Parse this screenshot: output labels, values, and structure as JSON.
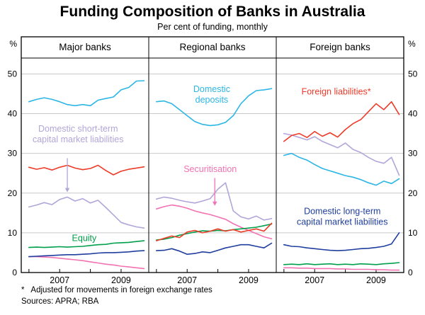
{
  "title": "Funding Composition of Banks in Australia",
  "subtitle": "Per cent of funding, monthly",
  "footnote": "*   Adjusted for movements in foreign exchange rates",
  "sources": "Sources: APRA; RBA",
  "colors": {
    "deposits": "#2cb6e6",
    "short_term": "#b2a6d9",
    "foreign": "#ee3b28",
    "equity": "#009f4c",
    "long_term": "#1f3e9e",
    "securitisation": "#f272b2",
    "grid": "#c9c9c9",
    "axis": "#000000"
  },
  "chart_data": {
    "type": "line",
    "unit": "%",
    "grid": true,
    "xlim": [
      2005.75,
      2009.9
    ],
    "ylim": [
      0,
      54
    ],
    "yticks": [
      0,
      10,
      20,
      30,
      40,
      50
    ],
    "xtick_positions": [
      2007,
      2009
    ],
    "xtick_labels": [
      "2007",
      "2009"
    ],
    "xtick_marks": [
      2006,
      2007,
      2008,
      2009
    ],
    "x_years": [
      2006.0,
      2006.25,
      2006.5,
      2006.75,
      2007.0,
      2007.25,
      2007.5,
      2007.75,
      2008.0,
      2008.25,
      2008.5,
      2008.75,
      2009.0,
      2009.25,
      2009.5,
      2009.75
    ],
    "panels": [
      {
        "title": "Major banks",
        "series": [
          {
            "name": "Domestic short-term capital market liabilities",
            "color_key": "short_term",
            "values": [
              16.5,
              17.0,
              17.6,
              17.1,
              18.4,
              19.0,
              18.0,
              18.6,
              17.5,
              18.2,
              16.4,
              14.5,
              12.6,
              12.0,
              11.5,
              11.2
            ]
          },
          {
            "name": "Securitisation",
            "color_key": "securitisation",
            "values": [
              4.0,
              4.0,
              3.9,
              3.8,
              3.6,
              3.4,
              3.2,
              3.0,
              2.7,
              2.4,
              2.1,
              1.9,
              1.6,
              1.4,
              1.2,
              1.0
            ]
          },
          {
            "name": "Equity",
            "color_key": "equity",
            "values": [
              6.3,
              6.4,
              6.3,
              6.4,
              6.5,
              6.4,
              6.5,
              6.6,
              6.8,
              7.0,
              7.1,
              7.4,
              7.5,
              7.6,
              7.8,
              8.0
            ]
          },
          {
            "name": "Domestic long-term capital market liabilities",
            "color_key": "long_term",
            "values": [
              4.0,
              4.1,
              4.2,
              4.3,
              4.4,
              4.5,
              4.5,
              4.6,
              4.7,
              4.9,
              5.0,
              5.0,
              5.1,
              5.2,
              5.4,
              5.5
            ]
          },
          {
            "name": "Foreign liabilities",
            "color_key": "foreign",
            "values": [
              26.5,
              26.0,
              26.4,
              25.8,
              26.5,
              27.0,
              26.3,
              25.9,
              26.2,
              27.0,
              25.7,
              24.6,
              25.5,
              26.0,
              26.3,
              26.6
            ]
          },
          {
            "name": "Domestic deposits",
            "color_key": "deposits",
            "values": [
              43.0,
              43.6,
              44.0,
              43.6,
              43.0,
              42.3,
              42.0,
              42.3,
              42.0,
              43.4,
              43.8,
              44.2,
              46.0,
              46.6,
              48.2,
              48.3
            ]
          }
        ]
      },
      {
        "title": "Regional banks",
        "series": [
          {
            "name": "Domestic short-term capital market liabilities",
            "color_key": "short_term",
            "values": [
              18.5,
              19.0,
              18.7,
              18.2,
              17.8,
              17.5,
              18.0,
              18.6,
              21.0,
              22.6,
              15.5,
              14.0,
              13.5,
              14.2,
              13.2,
              13.6
            ]
          },
          {
            "name": "Securitisation",
            "color_key": "securitisation",
            "values": [
              16.0,
              16.6,
              17.0,
              16.7,
              16.2,
              15.5,
              15.0,
              14.6,
              14.0,
              13.4,
              12.3,
              11.4,
              10.6,
              9.8,
              9.0,
              8.5
            ]
          },
          {
            "name": "Domestic long-term capital market liabilities",
            "color_key": "long_term",
            "values": [
              5.5,
              5.6,
              6.0,
              5.4,
              4.6,
              4.8,
              5.2,
              5.0,
              5.6,
              6.2,
              6.6,
              7.0,
              7.0,
              6.6,
              6.2,
              7.4
            ]
          },
          {
            "name": "Equity",
            "color_key": "equity",
            "values": [
              8.2,
              8.4,
              8.8,
              9.4,
              9.8,
              10.2,
              10.5,
              10.4,
              10.6,
              10.5,
              10.8,
              11.0,
              11.2,
              11.4,
              11.8,
              12.2
            ]
          },
          {
            "name": "Foreign liabilities",
            "color_key": "foreign",
            "values": [
              8.0,
              8.6,
              9.2,
              8.8,
              10.2,
              10.6,
              10.0,
              10.4,
              11.0,
              10.4,
              10.8,
              10.2,
              10.6,
              11.0,
              10.4,
              12.4
            ]
          },
          {
            "name": "Domestic deposits",
            "color_key": "deposits",
            "values": [
              43.0,
              43.2,
              42.5,
              41.0,
              39.5,
              38.0,
              37.3,
              37.0,
              37.2,
              37.8,
              39.5,
              42.5,
              44.5,
              45.8,
              46.0,
              46.3
            ]
          }
        ]
      },
      {
        "title": "Foreign banks",
        "series": [
          {
            "name": "Securitisation",
            "color_key": "securitisation",
            "values": [
              1.2,
              1.2,
              1.1,
              1.1,
              1.0,
              1.0,
              1.0,
              0.9,
              0.9,
              0.8,
              0.8,
              0.8,
              0.7,
              0.7,
              0.6,
              0.6
            ]
          },
          {
            "name": "Equity",
            "color_key": "equity",
            "values": [
              2.0,
              2.1,
              2.0,
              2.2,
              2.0,
              2.1,
              2.2,
              2.0,
              2.1,
              2.0,
              2.2,
              2.1,
              2.0,
              2.2,
              2.3,
              2.5
            ]
          },
          {
            "name": "Domestic long-term capital market liabilities",
            "color_key": "long_term",
            "values": [
              7.0,
              6.6,
              6.5,
              6.2,
              6.0,
              5.8,
              5.6,
              5.5,
              5.6,
              5.8,
              6.0,
              6.1,
              6.3,
              6.6,
              7.2,
              10.0
            ]
          },
          {
            "name": "Domestic deposits",
            "color_key": "deposits",
            "values": [
              29.5,
              30.0,
              29.0,
              28.3,
              27.2,
              26.2,
              25.6,
              25.0,
              24.4,
              24.0,
              23.4,
              22.6,
              22.0,
              23.0,
              22.4,
              23.6
            ]
          },
          {
            "name": "Domestic short-term capital market liabilities",
            "color_key": "short_term",
            "values": [
              35.0,
              34.6,
              34.0,
              33.4,
              34.2,
              33.0,
              32.2,
              31.4,
              32.6,
              31.0,
              30.2,
              29.0,
              28.0,
              27.5,
              29.0,
              24.5
            ]
          },
          {
            "name": "Foreign liabilities",
            "color_key": "foreign",
            "values": [
              33.0,
              34.5,
              35.0,
              34.0,
              35.5,
              34.3,
              35.2,
              34.1,
              36.0,
              37.5,
              38.5,
              40.5,
              42.5,
              41.0,
              43.0,
              39.8
            ]
          }
        ]
      }
    ],
    "annotations": [
      {
        "panel": 0,
        "color_key": "short_term",
        "lines": [
          "Domestic short-term",
          "capital market liabilities"
        ],
        "x": 2007.6,
        "y": 36.2,
        "arrow": {
          "x": 2007.25,
          "y_from": 28.8,
          "y_to": 20.2
        }
      },
      {
        "panel": 0,
        "color_key": "equity",
        "lines": [
          "Equity"
        ],
        "x": 2007.8,
        "y": 8.6
      },
      {
        "panel": 1,
        "color_key": "deposits",
        "lines": [
          "Domestic",
          "deposits"
        ],
        "x": 2007.8,
        "y": 46.2
      },
      {
        "panel": 1,
        "color_key": "securitisation",
        "lines": [
          "Securitisation"
        ],
        "x": 2007.75,
        "y": 26.0,
        "arrow": {
          "x": 2007.9,
          "y_from": 23.8,
          "y_to": 16.8
        }
      },
      {
        "panel": 2,
        "color_key": "foreign",
        "lines": [
          "Foreign liabilities*"
        ],
        "x": 2007.7,
        "y": 45.5
      },
      {
        "panel": 2,
        "color_key": "long_term",
        "lines": [
          "Domestic long-term",
          "capital market liabilities"
        ],
        "x": 2007.9,
        "y": 15.4
      }
    ]
  }
}
